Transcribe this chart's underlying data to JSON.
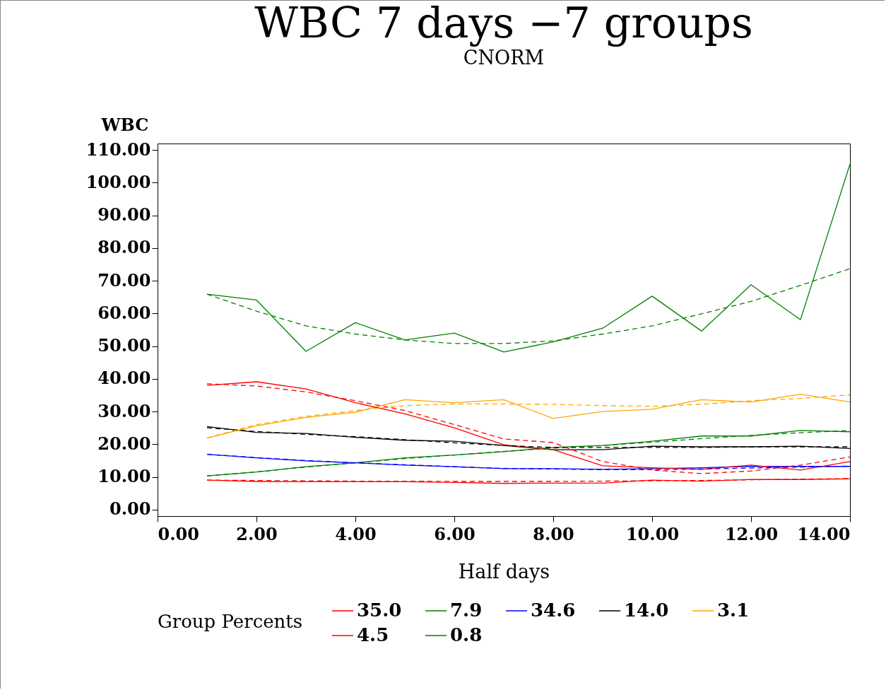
{
  "chart_data": {
    "type": "line",
    "title": "WBC 7 days −7 groups",
    "subtitle": "CNORM",
    "xlabel": "Half days",
    "ylabel": "WBC",
    "legend_title": "Group Percents",
    "legend": "bottom",
    "grid": false,
    "x": [
      1,
      2,
      3,
      4,
      5,
      6,
      7,
      8,
      9,
      10,
      11,
      12,
      13,
      14
    ],
    "xlim": [
      0,
      14
    ],
    "xticks": [
      {
        "value": 0,
        "label": "0.00"
      },
      {
        "value": 2,
        "label": "2.00"
      },
      {
        "value": 4,
        "label": "4.00"
      },
      {
        "value": 6,
        "label": "6.00"
      },
      {
        "value": 8,
        "label": "8.00"
      },
      {
        "value": 10,
        "label": "10.00"
      },
      {
        "value": 12,
        "label": "12.00"
      },
      {
        "value": 14,
        "label": "14.00"
      }
    ],
    "ylim": [
      -2,
      112
    ],
    "yticks": [
      {
        "value": 0,
        "label": "0.00"
      },
      {
        "value": 10,
        "label": "10.00"
      },
      {
        "value": 20,
        "label": "20.00"
      },
      {
        "value": 30,
        "label": "30.00"
      },
      {
        "value": 40,
        "label": "40.00"
      },
      {
        "value": 50,
        "label": "50.00"
      },
      {
        "value": 60,
        "label": "60.00"
      },
      {
        "value": 70,
        "label": "70.00"
      },
      {
        "value": 80,
        "label": "80.00"
      },
      {
        "value": 90,
        "label": "90.00"
      },
      {
        "value": 100,
        "label": "100.00"
      },
      {
        "value": 110,
        "label": "110.00"
      }
    ],
    "series": [
      {
        "name": "35.0",
        "color": "#ff0000",
        "line_style": "solid",
        "values": [
          9.0,
          8.6,
          8.5,
          8.5,
          8.5,
          8.3,
          8.0,
          8.1,
          8.1,
          9.0,
          8.7,
          9.2,
          9.2,
          9.4
        ]
      },
      {
        "name": "7.9",
        "color": "#008000",
        "line_style": "solid",
        "values": [
          10.3,
          11.5,
          13.1,
          14.3,
          15.8,
          16.7,
          17.7,
          19.0,
          19.6,
          20.9,
          22.5,
          22.5,
          24.2,
          23.8
        ]
      },
      {
        "name": "34.6",
        "color": "#0000ff",
        "line_style": "solid",
        "values": [
          16.9,
          15.8,
          14.9,
          14.3,
          13.6,
          13.1,
          12.5,
          12.5,
          12.3,
          12.5,
          12.8,
          13.2,
          13.2,
          13.2
        ]
      },
      {
        "name": "14.0",
        "color": "#000000",
        "line_style": "solid",
        "values": [
          25.4,
          23.6,
          23.3,
          22.1,
          21.2,
          20.9,
          19.6,
          18.3,
          18.3,
          19.4,
          19.2,
          19.2,
          19.4,
          18.7
        ]
      },
      {
        "name": "3.1",
        "color": "#ffa500",
        "line_style": "solid",
        "values": [
          21.9,
          25.6,
          28.2,
          29.8,
          33.6,
          32.7,
          33.6,
          27.9,
          30.0,
          30.7,
          33.6,
          32.9,
          35.3,
          32.9
        ]
      },
      {
        "name": "4.5",
        "color": "#ff0000",
        "line_style": "solid",
        "values": [
          38.0,
          39.1,
          36.9,
          32.7,
          29.3,
          25.0,
          19.8,
          18.3,
          13.4,
          12.8,
          12.3,
          13.6,
          12.1,
          14.7
        ]
      },
      {
        "name": "0.8",
        "color": "#008000",
        "line_style": "solid",
        "values": [
          65.9,
          64.1,
          48.4,
          57.2,
          51.9,
          54.0,
          48.2,
          51.3,
          55.5,
          65.3,
          54.6,
          68.8,
          58.1,
          105.7
        ]
      },
      {
        "color": "#ff0000",
        "line_style": "dashed",
        "values": [
          9.0,
          8.9,
          8.8,
          8.7,
          8.7,
          8.6,
          8.6,
          8.6,
          8.7,
          8.8,
          8.9,
          9.1,
          9.3,
          9.5
        ]
      },
      {
        "color": "#008000",
        "line_style": "dashed",
        "values": [
          10.3,
          11.5,
          13.0,
          14.3,
          15.6,
          16.7,
          17.8,
          18.8,
          19.6,
          20.6,
          21.7,
          22.7,
          23.5,
          24.2
        ]
      },
      {
        "color": "#0000ff",
        "line_style": "dashed",
        "values": [
          16.9,
          15.9,
          15.0,
          14.3,
          13.7,
          13.1,
          12.6,
          12.4,
          12.2,
          12.2,
          12.4,
          12.7,
          13.0,
          13.3
        ]
      },
      {
        "color": "#000000",
        "line_style": "dashed",
        "values": [
          25.0,
          23.9,
          23.0,
          22.3,
          21.4,
          20.4,
          19.6,
          19.0,
          19.0,
          19.0,
          19.0,
          19.2,
          19.2,
          19.2
        ]
      },
      {
        "color": "#ffa500",
        "line_style": "dashed",
        "values": [
          21.9,
          26.0,
          28.5,
          30.3,
          31.8,
          32.3,
          32.3,
          32.2,
          31.8,
          31.6,
          32.2,
          33.3,
          34.0,
          35.1
        ]
      },
      {
        "color": "#ff0000",
        "line_style": "dashed",
        "values": [
          38.5,
          37.8,
          36.0,
          33.3,
          30.3,
          26.0,
          21.6,
          20.5,
          14.7,
          12.1,
          11.0,
          11.8,
          13.6,
          16.1
        ]
      },
      {
        "color": "#008000",
        "line_style": "dashed",
        "values": [
          65.9,
          60.7,
          56.2,
          53.7,
          51.9,
          50.8,
          50.8,
          51.6,
          53.7,
          56.2,
          59.9,
          63.7,
          68.6,
          73.7
        ]
      }
    ]
  }
}
